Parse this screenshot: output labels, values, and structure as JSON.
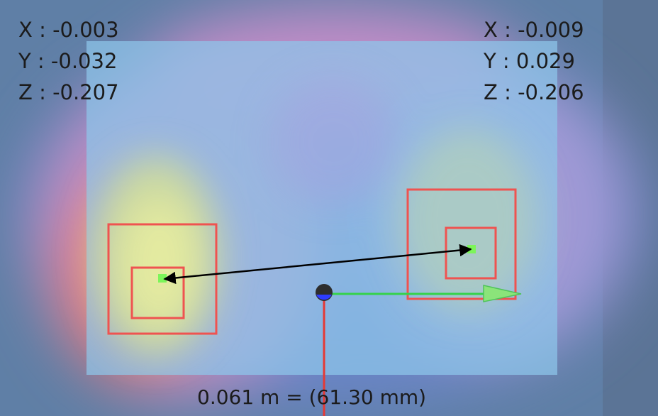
{
  "readouts": {
    "left": {
      "x": "X : -0.003",
      "y": "Y : -0.032",
      "z": "Z : -0.207"
    },
    "right": {
      "x": "X : -0.009",
      "y": "Y : 0.029",
      "z": "Z : -0.206"
    }
  },
  "measurement": {
    "label_meters": "0.061 m",
    "separator": "=",
    "label_mm": "(61.30 mm)"
  },
  "colors": {
    "frame_bg": "#5f7fa6",
    "sensor_plane": "#8ec6ea",
    "marker_box": "#ef5350",
    "marker_point": "#7cf55a",
    "measure_arrow": "#000000",
    "axis_x": "#35d24a",
    "axis_y": "#e53935",
    "origin": "#2d2d2d",
    "origin_z": "#2d3cff"
  },
  "icons": {
    "origin": "origin-marker-icon",
    "x_axis": "x-axis-arrow-icon",
    "y_axis": "y-axis-line-icon"
  }
}
